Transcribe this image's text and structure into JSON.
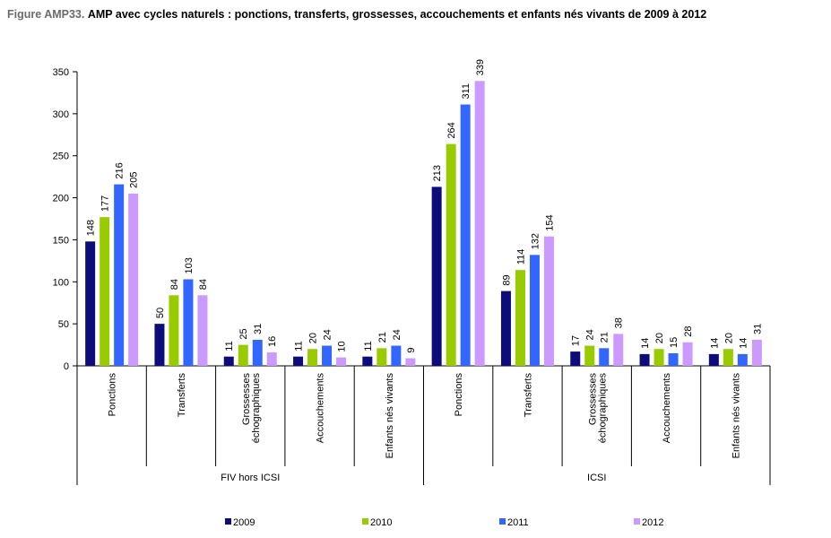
{
  "title": {
    "prefix": "Figure AMP33.",
    "text": "AMP avec cycles naturels : ponctions, transferts, grossesses, accouchements et enfants nés vivants de 2009 à 2012"
  },
  "chart_data": {
    "type": "bar",
    "ylim": [
      0,
      350
    ],
    "yticks": [
      0,
      50,
      100,
      150,
      200,
      250,
      300,
      350
    ],
    "grid": false,
    "legend_position": "bottom",
    "groups": [
      {
        "label": "FIV hors ICSI",
        "categories": [
          "Ponctions",
          "Transferts",
          "Grossesses échographiques",
          "Accouchements",
          "Enfants nés vivants"
        ]
      },
      {
        "label": "ICSI",
        "categories": [
          "Ponctions",
          "Transferts",
          "Grossesses échographiques",
          "Accouchements",
          "Enfants nés vivants"
        ]
      }
    ],
    "categories": [
      "Ponctions",
      "Transferts",
      "Grossesses échographiques",
      "Accouchements",
      "Enfants nés vivants",
      "Ponctions",
      "Transferts",
      "Grossesses échographiques",
      "Accouchements",
      "Enfants nés vivants"
    ],
    "series": [
      {
        "name": "2009",
        "color": "#0c0c7a",
        "values": [
          148,
          50,
          11,
          11,
          11,
          213,
          89,
          17,
          14,
          14
        ]
      },
      {
        "name": "2010",
        "color": "#99cc00",
        "values": [
          177,
          84,
          25,
          20,
          21,
          264,
          114,
          24,
          20,
          20
        ]
      },
      {
        "name": "2011",
        "color": "#3366ff",
        "values": [
          216,
          103,
          31,
          24,
          24,
          311,
          132,
          21,
          15,
          14
        ]
      },
      {
        "name": "2012",
        "color": "#cc99ff",
        "values": [
          205,
          84,
          16,
          10,
          9,
          339,
          154,
          38,
          28,
          31
        ]
      }
    ]
  }
}
